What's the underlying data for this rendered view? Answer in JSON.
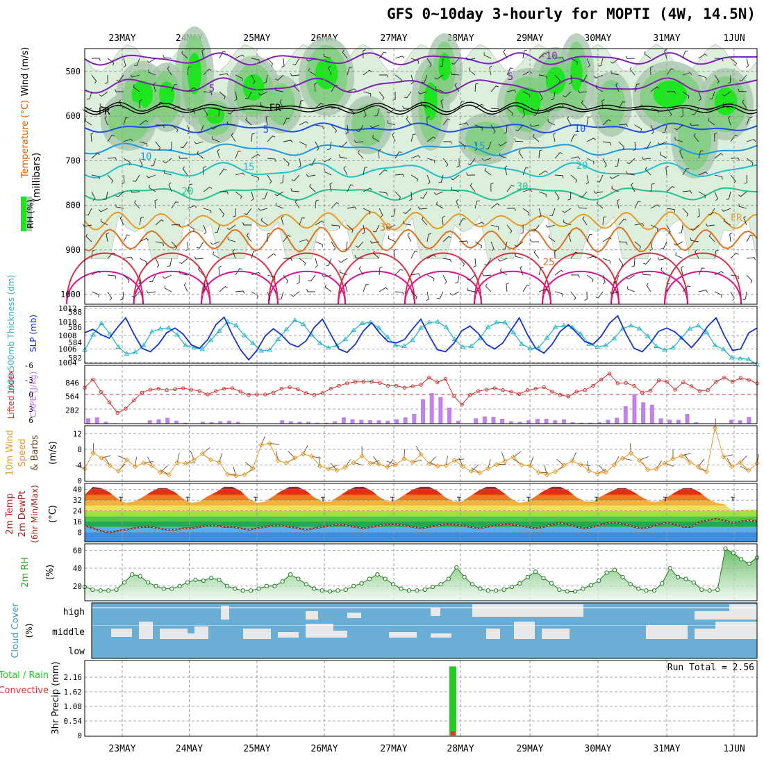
{
  "title": "GFS 0~10day 3-hourly for MOPTI (4W, 14.5N)",
  "dates": [
    "23MAY",
    "24MAY",
    "25MAY",
    "26MAY",
    "27MAY",
    "28MAY",
    "29MAY",
    "30MAY",
    "31MAY",
    "1JUN"
  ],
  "colors": {
    "rh_dark": "#1ee61e",
    "rh_mid": "#7fcf7f",
    "rh_light": "#dcefdc",
    "slp": "#1432d2",
    "thickness": "#2ab8c8",
    "li": "#d23232",
    "cape": "#c080f0",
    "wind": "#e89a28",
    "dewpt": "#b06060",
    "rh2m_fill": "#3aa83a",
    "cloud": "#6aaed6",
    "cloud_gap": "#e8e8e8",
    "precip_total": "#22cc22",
    "precip_conv": "#e83030"
  },
  "panels": {
    "upper": {
      "y_axis_label": "(millibars)",
      "legend_wind": "Wind (m/s)",
      "legend_temp": "Temperature (°C)",
      "legend_rh": "RH (%)",
      "pressure_ticks": [
        500,
        600,
        700,
        800,
        900,
        1000
      ],
      "temp_labels": [
        "-10",
        "5",
        "5",
        "5",
        "10",
        "10",
        "15",
        "15",
        "20",
        "20",
        "30",
        "30",
        "25",
        "FR",
        "FR",
        "FR"
      ]
    },
    "slp": {
      "label_thick": "1000-500mb Thickness (dm)",
      "label_slp": "SLP (mb)",
      "left_ticks": [
        582,
        584,
        586,
        588
      ],
      "right_ticks": [
        1004,
        1006,
        1008,
        1010,
        1012
      ],
      "slp_values": [
        1008.4,
        1008.9,
        1008.1,
        1007.6,
        1009.2,
        1010.6,
        1008.2,
        1006.1,
        1005.6,
        1006.7,
        1008.4,
        1009.1,
        1008.2,
        1006.6,
        1006.1,
        1007.4,
        1009.6,
        1010.7,
        1008.1,
        1005.9,
        1004.4,
        1005.8,
        1007.9,
        1009.0,
        1008.1,
        1006.8,
        1006.3,
        1007.2,
        1009.2,
        1010.4,
        1008.2,
        1006.0,
        1005.5,
        1006.7,
        1008.7,
        1009.9,
        1008.3,
        1007.1,
        1006.9,
        1007.4,
        1009.0,
        1010.4,
        1008.0,
        1005.9,
        1005.6,
        1006.8,
        1008.7,
        1009.4,
        1008.3,
        1006.7,
        1006.0,
        1006.9,
        1008.8,
        1010.6,
        1008.1,
        1006.1,
        1005.4,
        1006.7,
        1008.6,
        1009.6,
        1008.4,
        1007.1,
        1006.7,
        1007.9,
        1009.8,
        1010.9,
        1008.3,
        1006.1,
        1005.6,
        1006.9,
        1008.6,
        1009.1,
        1008.5,
        1007.4,
        1006.2,
        1007.6,
        1009.4,
        1010.6,
        1008.0,
        1005.8,
        1006.0,
        1008.4,
        1009.1
      ],
      "thick_values": [
        583.0,
        585.0,
        586.5,
        585.1,
        583.4,
        582.5,
        582.7,
        583.6,
        585.4,
        585.8,
        585.9,
        585.0,
        583.6,
        583.3,
        583.1,
        584.3,
        585.5,
        586.7,
        586.2,
        584.9,
        583.9,
        582.9,
        583.0,
        584.4,
        585.7,
        586.9,
        586.4,
        585.0,
        583.9,
        583.3,
        583.6,
        584.4,
        585.6,
        586.5,
        586.6,
        585.9,
        584.7,
        583.6,
        583.5,
        584.3,
        585.9,
        586.6,
        586.7,
        586.0,
        584.4,
        583.4,
        583.5,
        584.5,
        586.0,
        586.6,
        586.6,
        585.3,
        583.8,
        583.2,
        583.3,
        584.6,
        586.0,
        586.2,
        586.0,
        585.1,
        583.8,
        583.4,
        583.6,
        584.5,
        585.8,
        586.2,
        585.8,
        584.8,
        583.5,
        583.0,
        583.3,
        584.6,
        585.8,
        586.2,
        585.3,
        583.6,
        583.1,
        582.0,
        581.9,
        581.8,
        581.1
      ]
    },
    "li_cape": {
      "label_li": "Lifted Index",
      "label_cape": "CAPE (J/kg)",
      "li_ticks": [
        "-6",
        "-3",
        "0",
        "3",
        "6"
      ],
      "cape_ticks": [
        "846",
        "564",
        "282"
      ],
      "li_values": [
        -1.4,
        -3.1,
        -0.5,
        1.6,
        3.8,
        2.9,
        1.2,
        -0.4,
        -1.0,
        -1.2,
        -0.9,
        -1.1,
        -1.3,
        -1.0,
        -0.7,
        0.0,
        -0.7,
        -1.2,
        -1.3,
        -0.6,
        0.1,
        0.0,
        0.0,
        -0.4,
        -1.2,
        -1.5,
        -1.1,
        -0.3,
        0.1,
        -0.3,
        -1.2,
        -1.8,
        -2.3,
        -2.6,
        -2.6,
        -2.6,
        -2.4,
        -1.8,
        -1.8,
        -1.4,
        -1.7,
        -2.0,
        -3.5,
        -2.5,
        -3.2,
        0.3,
        2.1,
        0.1,
        -0.7,
        -1.0,
        -1.3,
        -0.9,
        -0.6,
        -0.1,
        -0.9,
        -1.2,
        -1.5,
        -0.6,
        0.1,
        0.4,
        -0.6,
        -0.9,
        -1.8,
        -3.1,
        -4.3,
        -2.3,
        -2.4,
        -1.8,
        -0.4,
        -0.8,
        -2.9,
        -2.6,
        -1.0,
        -2.5,
        -1.7,
        -0.7,
        -0.9,
        -2.6,
        -3.5,
        -2.6,
        -3.4,
        -3.0,
        -2.3
      ],
      "cape_values": [
        110,
        130,
        40,
        10,
        0,
        0,
        0,
        70,
        90,
        120,
        60,
        20,
        0,
        40,
        30,
        50,
        60,
        40,
        0,
        0,
        0,
        0,
        70,
        50,
        40,
        40,
        20,
        20,
        50,
        130,
        90,
        80,
        70,
        70,
        60,
        90,
        130,
        200,
        500,
        630,
        550,
        330,
        60,
        0,
        110,
        150,
        140,
        100,
        50,
        40,
        70,
        100,
        100,
        70,
        90,
        30,
        20,
        20,
        30,
        80,
        120,
        360,
        610,
        440,
        390,
        110,
        80,
        80,
        200,
        30,
        0,
        0,
        0,
        80,
        70,
        140
      ]
    },
    "wind10m": {
      "label_a": "10m Wind",
      "label_b": "Speed",
      "label_c": "& Barbs",
      "unit": "(m/s)",
      "ticks": [
        0,
        4,
        8,
        12
      ],
      "values": [
        3,
        7.1,
        5.8,
        3.8,
        2.4,
        5.3,
        3.6,
        4.5,
        3.8,
        2.1,
        1.5,
        4.6,
        4.4,
        5.3,
        6.9,
        5.3,
        4.7,
        1.6,
        1.2,
        1.5,
        3.1,
        9.1,
        9.5,
        5.1,
        4.5,
        5.8,
        6.8,
        6.2,
        3.7,
        3.0,
        2.6,
        3.4,
        4.6,
        6.3,
        4.4,
        4.2,
        3.5,
        4.1,
        5.6,
        4.7,
        6.7,
        4.3,
        3.7,
        3.9,
        5.2,
        3.6,
        2.4,
        2.0,
        3.1,
        4.1,
        5.0,
        6.0,
        4.0,
        3.8,
        2.1,
        1.5,
        2.3,
        3.9,
        5.0,
        4.1,
        2.5,
        1.8,
        2.1,
        4.0,
        5.7,
        7.0,
        5.2,
        2.8,
        3.0,
        4.4,
        5.6,
        6.3,
        4.7,
        3.6,
        2.3,
        13.4,
        6.1,
        3.6,
        4.6,
        2.6,
        4.4
      ]
    },
    "temp2m": {
      "label_a": "2m Temp",
      "label_b": "2m DewPt",
      "label_c": "(6hr Min/Max)",
      "unit": "(°C)",
      "ticks": [
        8,
        16,
        24,
        32,
        40
      ],
      "temp_values": [
        36,
        42,
        41,
        38,
        33,
        30,
        31,
        34,
        38,
        41,
        41,
        38,
        33,
        30,
        31,
        35,
        38,
        42,
        42,
        39,
        33,
        30,
        31,
        35,
        39,
        42,
        42,
        39,
        34,
        31,
        31,
        35,
        39,
        42,
        42,
        39,
        34,
        31,
        32,
        36,
        40,
        42,
        42,
        39,
        34,
        31,
        31,
        35,
        39,
        42,
        42,
        38,
        33,
        30,
        31,
        35,
        39,
        42,
        42,
        39,
        34,
        31,
        31,
        35,
        38,
        41,
        41,
        38,
        34,
        31,
        31,
        34,
        38,
        41,
        41,
        38,
        33,
        30,
        29,
        24,
        25,
        25,
        25
      ],
      "dewpt_values": [
        13,
        11,
        9,
        8,
        9,
        10,
        11,
        12,
        12,
        11,
        10,
        10,
        11,
        11,
        12,
        13,
        13,
        12,
        12,
        11,
        10,
        11,
        12,
        13,
        13,
        12,
        11,
        10,
        11,
        12,
        13,
        14,
        13,
        12,
        11,
        12,
        13,
        14,
        14,
        13,
        12,
        11,
        12,
        13,
        14,
        14,
        13,
        12,
        11,
        12,
        13,
        14,
        14,
        13,
        12,
        11,
        12,
        14,
        15,
        14,
        12,
        11,
        12,
        14,
        15,
        15,
        14,
        12,
        11,
        12,
        14,
        15,
        14,
        12,
        12,
        16,
        17,
        18,
        17,
        15,
        16,
        17,
        16
      ]
    },
    "rh2m": {
      "label": "2m RH",
      "unit": "(%)",
      "ticks": [
        20,
        40,
        60
      ],
      "values": [
        19,
        16,
        15,
        15,
        16,
        24,
        33,
        31,
        24,
        20,
        17,
        17,
        20,
        24,
        27,
        26,
        29,
        27,
        20,
        17,
        15,
        15,
        17,
        20,
        20,
        25,
        33,
        28,
        22,
        17,
        15,
        14,
        15,
        16,
        20,
        23,
        28,
        33,
        28,
        22,
        17,
        15,
        15,
        16,
        19,
        22,
        28,
        41,
        30,
        22,
        17,
        15,
        15,
        16,
        19,
        23,
        30,
        36,
        29,
        23,
        16,
        14,
        14,
        17,
        21,
        26,
        35,
        38,
        30,
        22,
        17,
        15,
        15,
        23,
        40,
        30,
        28,
        24,
        16,
        15,
        16,
        62,
        57,
        50,
        45,
        52
      ]
    },
    "cloud": {
      "label": "Cloud Cover",
      "unit": "(%)",
      "levels": [
        "high",
        "middle",
        "low"
      ]
    },
    "precip": {
      "label_total": "Total / Rain",
      "label_conv": "Convective",
      "axis_label": "3hr Precip (mm)",
      "ticks": [
        "0",
        "0.54",
        "1.08",
        "1.62",
        "2.16"
      ],
      "run_total": "Run Total = 2.56",
      "event_date": "28MAY",
      "total_mm": 2.56,
      "convective_mm": 0.05
    }
  }
}
